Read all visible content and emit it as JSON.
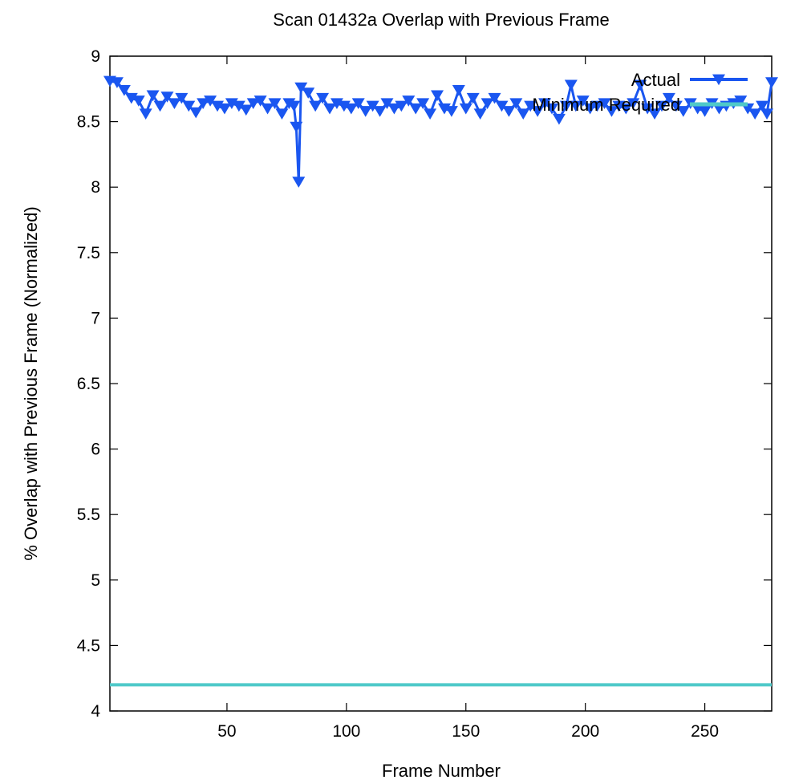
{
  "chart_data": {
    "type": "line",
    "title": "Scan 01432a Overlap with Previous Frame",
    "xlabel": "Frame Number",
    "ylabel": "% Overlap with Previous Frame (Normalized)",
    "xlim": [
      1,
      278
    ],
    "ylim": [
      4,
      9
    ],
    "xticks": [
      50,
      100,
      150,
      200,
      250
    ],
    "yticks": [
      4,
      4.5,
      5,
      5.5,
      6,
      6.5,
      7,
      7.5,
      8,
      8.5,
      9
    ],
    "grid": false,
    "legend_position": "top-right",
    "series": [
      {
        "name": "Actual",
        "color": "#1a56f0",
        "marker": "triangle-down",
        "x": [
          1,
          4,
          7,
          10,
          13,
          16,
          19,
          22,
          25,
          28,
          31,
          34,
          37,
          40,
          43,
          46,
          49,
          52,
          55,
          58,
          61,
          64,
          67,
          70,
          73,
          76,
          78,
          79,
          80,
          81,
          84,
          87,
          90,
          93,
          96,
          99,
          102,
          105,
          108,
          111,
          114,
          117,
          120,
          123,
          126,
          129,
          132,
          135,
          138,
          141,
          144,
          147,
          150,
          153,
          156,
          159,
          162,
          165,
          168,
          171,
          174,
          177,
          180,
          183,
          186,
          189,
          192,
          194,
          196,
          199,
          202,
          205,
          208,
          211,
          214,
          217,
          220,
          223,
          226,
          229,
          232,
          235,
          238,
          241,
          244,
          247,
          250,
          253,
          256,
          259,
          262,
          265,
          268,
          271,
          274,
          276,
          278
        ],
        "values": [
          8.81,
          8.8,
          8.74,
          8.68,
          8.66,
          8.56,
          8.7,
          8.62,
          8.69,
          8.64,
          8.68,
          8.62,
          8.57,
          8.64,
          8.66,
          8.62,
          8.6,
          8.64,
          8.62,
          8.59,
          8.64,
          8.66,
          8.6,
          8.64,
          8.56,
          8.64,
          8.62,
          8.46,
          8.04,
          8.76,
          8.72,
          8.62,
          8.68,
          8.6,
          8.64,
          8.62,
          8.6,
          8.64,
          8.58,
          8.62,
          8.58,
          8.64,
          8.6,
          8.62,
          8.66,
          8.6,
          8.64,
          8.56,
          8.7,
          8.6,
          8.58,
          8.74,
          8.6,
          8.68,
          8.56,
          8.64,
          8.68,
          8.62,
          8.58,
          8.64,
          8.56,
          8.62,
          8.58,
          8.64,
          8.6,
          8.52,
          8.62,
          8.78,
          8.62,
          8.66,
          8.6,
          8.62,
          8.64,
          8.58,
          8.62,
          8.6,
          8.64,
          8.78,
          8.6,
          8.56,
          8.62,
          8.68,
          8.62,
          8.58,
          8.64,
          8.6,
          8.58,
          8.64,
          8.6,
          8.62,
          8.64,
          8.66,
          8.6,
          8.56,
          8.62,
          8.56,
          8.8
        ]
      },
      {
        "name": "Minimum Required",
        "color": "#4fc9c9",
        "marker": "none",
        "x": [
          1,
          278
        ],
        "values": [
          4.2,
          4.2
        ]
      }
    ]
  }
}
